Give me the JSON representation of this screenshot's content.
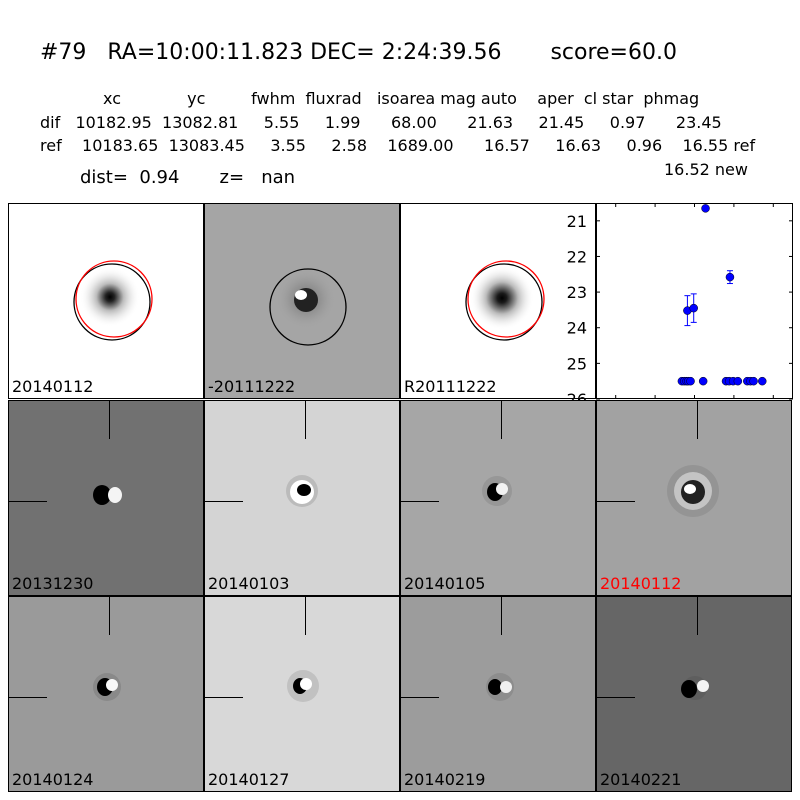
{
  "header": {
    "title": "#79   RA=10:00:11.823 DEC= 2:24:39.56       score=60.0",
    "columns_line": "xc             yc         fwhm  fluxrad   isoarea mag auto    aper  cl star  phmag",
    "dif_line": "dif   10182.95  13082.81     5.55     1.99      68.00      21.63     21.45     0.97      23.45",
    "ref_line": "ref    10183.65  13083.45     3.55     2.58    1689.00      16.57     16.63     0.96    16.55 ref",
    "dist_line": "dist=  0.94       z=   nan",
    "new_mag": "16.52 new"
  },
  "stamps_top": [
    {
      "label": "20140112",
      "bg": "#ffffff",
      "style": "ref-circles"
    },
    {
      "label": "-20111222",
      "bg": "#a5a5a5",
      "style": "diff-circle"
    },
    {
      "label": "R20111222",
      "bg": "#ffffff",
      "style": "ref-circles"
    }
  ],
  "stamps_mid": [
    {
      "label": "20131230",
      "bg": "#717171",
      "label_color": "#000000"
    },
    {
      "label": "20140103",
      "bg": "#d4d4d4",
      "label_color": "#000000"
    },
    {
      "label": "20140105",
      "bg": "#a6a6a6",
      "label_color": "#000000"
    },
    {
      "label": "20140112",
      "bg": "#a2a2a2",
      "label_color": "#ff0000"
    }
  ],
  "stamps_bot": [
    {
      "label": "20140124",
      "bg": "#9a9a9a",
      "label_color": "#000000"
    },
    {
      "label": "20140127",
      "bg": "#d8d8d8",
      "label_color": "#000000"
    },
    {
      "label": "20140219",
      "bg": "#9c9c9c",
      "label_color": "#000000"
    },
    {
      "label": "20140221",
      "bg": "#666666",
      "label_color": "#000000"
    }
  ],
  "chart_data": {
    "type": "scatter",
    "title": "",
    "xlabel": "",
    "ylabel": "",
    "xlim": [
      -125,
      125
    ],
    "ylim": [
      26,
      20.5
    ],
    "y_inverted": true,
    "xticks": [
      -100,
      -50,
      0,
      50,
      100
    ],
    "yticks": [
      21,
      22,
      23,
      24,
      25,
      26
    ],
    "marker_color": "#0000ff",
    "series": [
      {
        "points": [
          {
            "x": -16,
            "y": 25.5,
            "err": 0
          },
          {
            "x": -13,
            "y": 25.5,
            "err": 0
          },
          {
            "x": -10,
            "y": 25.5,
            "err": 0
          },
          {
            "x": -8,
            "y": 25.5,
            "err": 0
          },
          {
            "x": -5,
            "y": 25.5,
            "err": 0
          },
          {
            "x": -9,
            "y": 23.52,
            "err": 0.42
          },
          {
            "x": -1,
            "y": 23.45,
            "err": 0.4
          },
          {
            "x": 11,
            "y": 25.5,
            "err": 0
          },
          {
            "x": 14,
            "y": 20.65,
            "err": 0
          },
          {
            "x": 40,
            "y": 25.5,
            "err": 0
          },
          {
            "x": 44,
            "y": 25.5,
            "err": 0
          },
          {
            "x": 45,
            "y": 22.58,
            "err": 0.18
          },
          {
            "x": 49,
            "y": 25.5,
            "err": 0
          },
          {
            "x": 55,
            "y": 25.5,
            "err": 0
          },
          {
            "x": 67,
            "y": 25.5,
            "err": 0
          },
          {
            "x": 71,
            "y": 25.5,
            "err": 0
          },
          {
            "x": 75,
            "y": 25.5,
            "err": 0
          },
          {
            "x": 86,
            "y": 25.5,
            "err": 0
          }
        ]
      }
    ]
  }
}
